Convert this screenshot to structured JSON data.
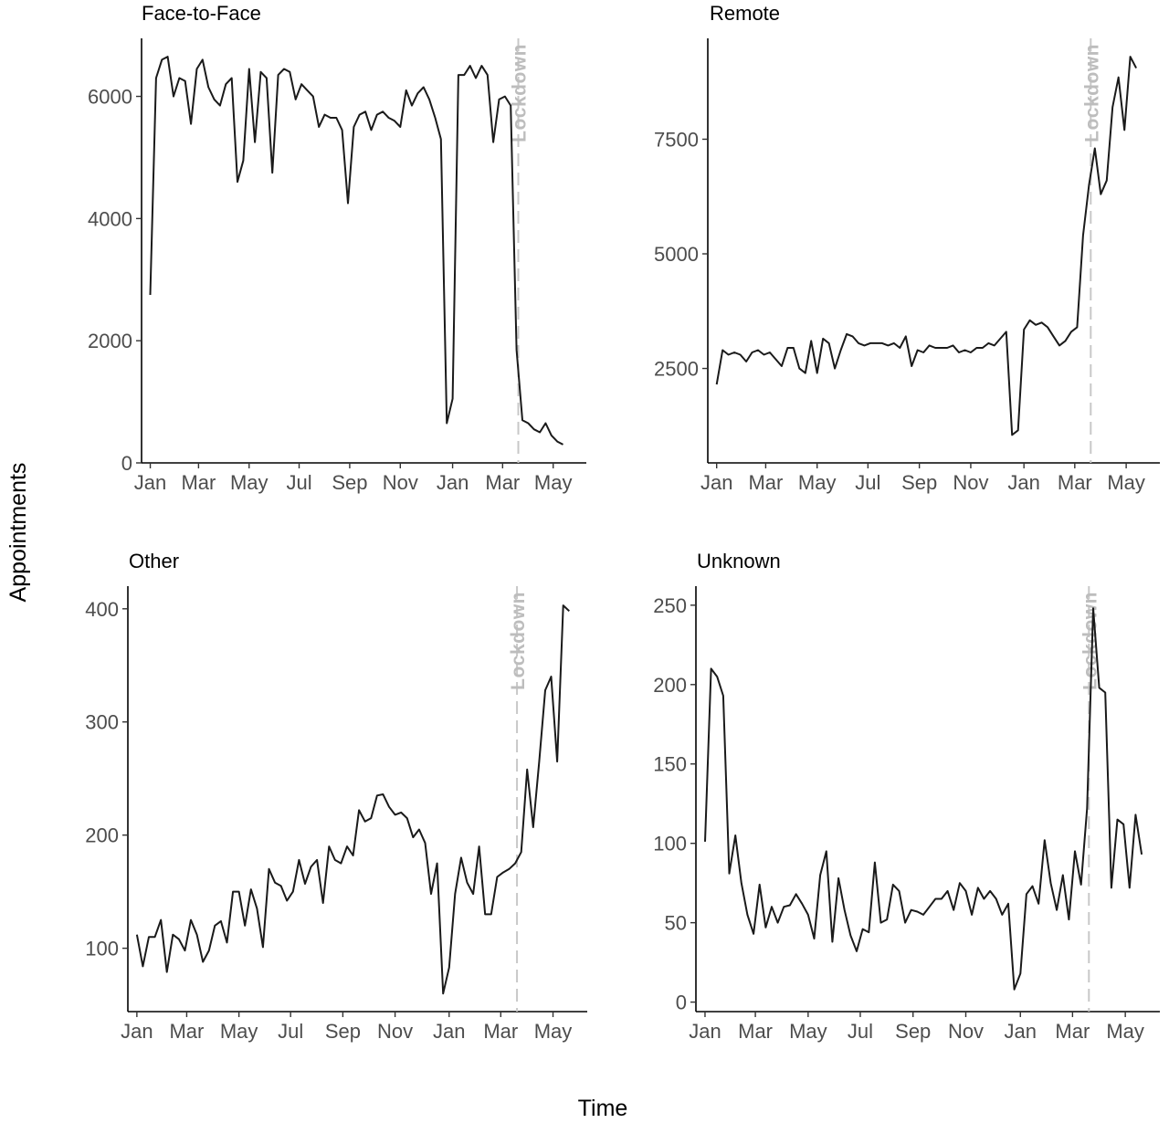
{
  "figure": {
    "ylabel": "Appointments",
    "xlabel": "Time",
    "colors": {
      "line": "#1a1a1a",
      "lockdown_line": "#c8c8c8",
      "lockdown_text": "#bdbdbd",
      "tick_text": "#4d4d4d"
    }
  },
  "chart_data": [
    {
      "type": "line",
      "title": "Face-to-Face",
      "x_unit": "weeks since first week of January (year 1)",
      "xlim": [
        -1.5,
        75
      ],
      "xticks": [
        {
          "label": "Jan",
          "x": 0
        },
        {
          "label": "Mar",
          "x": 8.3
        },
        {
          "label": "May",
          "x": 17
        },
        {
          "label": "Jul",
          "x": 25.6
        },
        {
          "label": "Sep",
          "x": 34.3
        },
        {
          "label": "Nov",
          "x": 43
        },
        {
          "label": "Jan",
          "x": 52
        },
        {
          "label": "Mar",
          "x": 60.6
        },
        {
          "label": "May",
          "x": 69.3
        }
      ],
      "ylim": [
        0,
        6950
      ],
      "yticks": [
        0,
        2000,
        4000,
        6000
      ],
      "lockdown": {
        "x": 63.3,
        "label": "Lockdown"
      },
      "series": [
        {
          "values": [
            2750,
            6300,
            6600,
            6650,
            6000,
            6300,
            6250,
            5550,
            6450,
            6600,
            6150,
            5950,
            5850,
            6200,
            6300,
            4600,
            4950,
            6450,
            5250,
            6400,
            6300,
            4750,
            6350,
            6450,
            6400,
            5950,
            6200,
            6100,
            6000,
            5500,
            5700,
            5650,
            5650,
            5450,
            4250,
            5500,
            5700,
            5750,
            5450,
            5700,
            5750,
            5650,
            5600,
            5500,
            6100,
            5850,
            6050,
            6150,
            5950,
            5650,
            5300,
            650,
            1050,
            6350,
            6350,
            6500,
            6300,
            6500,
            6350,
            5250,
            5950,
            6000,
            5850,
            1850,
            700,
            650,
            550,
            500,
            650,
            450,
            350,
            300
          ]
        }
      ]
    },
    {
      "type": "line",
      "title": "Remote",
      "x_unit": "weeks since first week of January (year 1)",
      "xlim": [
        -1.5,
        75
      ],
      "xticks": [
        {
          "label": "Jan",
          "x": 0
        },
        {
          "label": "Mar",
          "x": 8.3
        },
        {
          "label": "May",
          "x": 17
        },
        {
          "label": "Jul",
          "x": 25.6
        },
        {
          "label": "Sep",
          "x": 34.3
        },
        {
          "label": "Nov",
          "x": 43
        },
        {
          "label": "Jan",
          "x": 52
        },
        {
          "label": "Mar",
          "x": 60.6
        },
        {
          "label": "May",
          "x": 69.3
        }
      ],
      "ylim": [
        440,
        9700
      ],
      "yticks": [
        2500,
        5000,
        7500
      ],
      "lockdown": {
        "x": 63.3,
        "label": "Lockdown"
      },
      "series": [
        {
          "values": [
            2150,
            2900,
            2800,
            2850,
            2800,
            2650,
            2850,
            2900,
            2800,
            2850,
            2700,
            2550,
            2950,
            2950,
            2500,
            2400,
            3100,
            2400,
            3150,
            3050,
            2500,
            2900,
            3250,
            3200,
            3050,
            3000,
            3050,
            3050,
            3050,
            3000,
            3050,
            2950,
            3200,
            2550,
            2900,
            2850,
            3000,
            2950,
            2950,
            2950,
            3000,
            2850,
            2900,
            2850,
            2950,
            2950,
            3050,
            3000,
            3150,
            3300,
            1050,
            1150,
            3350,
            3550,
            3450,
            3500,
            3400,
            3200,
            3000,
            3100,
            3300,
            3400,
            5400,
            6500,
            7300,
            6300,
            6600,
            8200,
            8850,
            7700,
            9300,
            9050
          ]
        }
      ]
    },
    {
      "type": "line",
      "title": "Other",
      "x_unit": "weeks since first week of January (year 1)",
      "xlim": [
        -1.5,
        75
      ],
      "xticks": [
        {
          "label": "Jan",
          "x": 0
        },
        {
          "label": "Mar",
          "x": 8.3
        },
        {
          "label": "May",
          "x": 17
        },
        {
          "label": "Jul",
          "x": 25.6
        },
        {
          "label": "Sep",
          "x": 34.3
        },
        {
          "label": "Nov",
          "x": 43
        },
        {
          "label": "Jan",
          "x": 52
        },
        {
          "label": "Mar",
          "x": 60.6
        },
        {
          "label": "May",
          "x": 69.3
        }
      ],
      "ylim": [
        44,
        420
      ],
      "yticks": [
        100,
        200,
        300,
        400
      ],
      "lockdown": {
        "x": 63.3,
        "label": "Lockdown"
      },
      "series": [
        {
          "values": [
            112,
            84,
            110,
            110,
            125,
            79,
            112,
            108,
            98,
            125,
            112,
            88,
            98,
            120,
            124,
            105,
            150,
            150,
            120,
            152,
            135,
            101,
            170,
            158,
            155,
            142,
            150,
            178,
            157,
            172,
            178,
            140,
            190,
            178,
            175,
            190,
            182,
            222,
            212,
            215,
            235,
            236,
            225,
            218,
            220,
            215,
            198,
            205,
            193,
            148,
            175,
            60,
            83,
            148,
            180,
            158,
            148,
            190,
            130,
            130,
            163,
            167,
            170,
            175,
            185,
            258,
            207,
            265,
            328,
            340,
            265,
            403,
            398
          ]
        }
      ]
    },
    {
      "type": "line",
      "title": "Unknown",
      "x_unit": "weeks since first week of January (year 1)",
      "xlim": [
        -1.5,
        75
      ],
      "xticks": [
        {
          "label": "Jan",
          "x": 0
        },
        {
          "label": "Mar",
          "x": 8.3
        },
        {
          "label": "May",
          "x": 17
        },
        {
          "label": "Jul",
          "x": 25.6
        },
        {
          "label": "Sep",
          "x": 34.3
        },
        {
          "label": "Nov",
          "x": 43
        },
        {
          "label": "Jan",
          "x": 52
        },
        {
          "label": "Mar",
          "x": 60.6
        },
        {
          "label": "May",
          "x": 69.3
        }
      ],
      "ylim": [
        -6,
        262
      ],
      "yticks": [
        0,
        50,
        100,
        150,
        200,
        250
      ],
      "lockdown": {
        "x": 63.3,
        "label": "Lockdown"
      },
      "series": [
        {
          "values": [
            101,
            210,
            205,
            193,
            81,
            105,
            75,
            55,
            43,
            74,
            47,
            60,
            50,
            60,
            61,
            68,
            62,
            55,
            40,
            80,
            95,
            38,
            78,
            58,
            42,
            32,
            46,
            44,
            88,
            50,
            52,
            74,
            70,
            50,
            58,
            57,
            55,
            60,
            65,
            65,
            70,
            58,
            75,
            70,
            55,
            72,
            65,
            70,
            65,
            55,
            62,
            8,
            18,
            68,
            73,
            62,
            102,
            75,
            58,
            80,
            52,
            95,
            74,
            122,
            248,
            198,
            195,
            72,
            115,
            112,
            72,
            118,
            93
          ]
        }
      ]
    }
  ]
}
